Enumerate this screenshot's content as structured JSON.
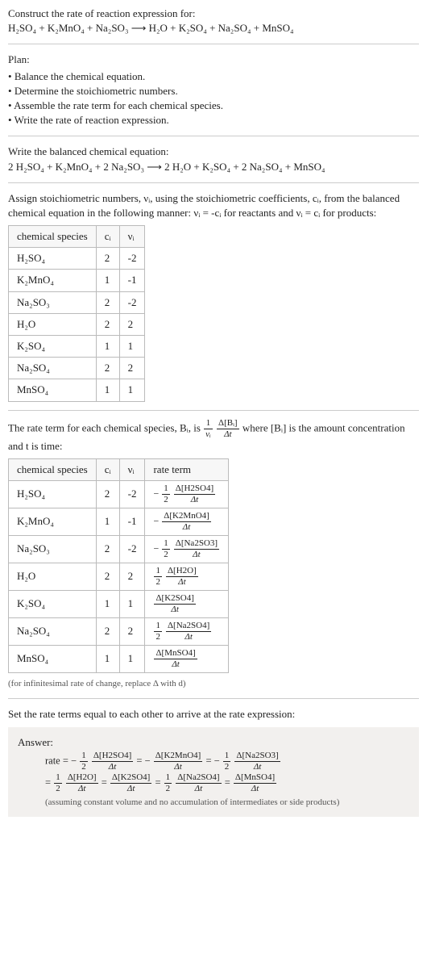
{
  "header": {
    "title": "Construct the rate of reaction expression for:",
    "reaction": "H₂SO₄ + K₂MnO₄ + Na₂SO₃ ⟶ H₂O + K₂SO₄ + Na₂SO₄ + MnSO₄"
  },
  "plan": {
    "title": "Plan:",
    "items": [
      "Balance the chemical equation.",
      "Determine the stoichiometric numbers.",
      "Assemble the rate term for each chemical species.",
      "Write the rate of reaction expression."
    ]
  },
  "balanced": {
    "title": "Write the balanced chemical equation:",
    "equation": "2 H₂SO₄ + K₂MnO₄ + 2 Na₂SO₃ ⟶ 2 H₂O + K₂SO₄ + 2 Na₂SO₄ + MnSO₄"
  },
  "stoich": {
    "intro": "Assign stoichiometric numbers, νᵢ, using the stoichiometric coefficients, cᵢ, from the balanced chemical equation in the following manner: νᵢ = -cᵢ for reactants and νᵢ = cᵢ for products:",
    "headers": [
      "chemical species",
      "cᵢ",
      "νᵢ"
    ],
    "rows": [
      {
        "species": "H₂SO₄",
        "c": "2",
        "v": "-2"
      },
      {
        "species": "K₂MnO₄",
        "c": "1",
        "v": "-1"
      },
      {
        "species": "Na₂SO₃",
        "c": "2",
        "v": "-2"
      },
      {
        "species": "H₂O",
        "c": "2",
        "v": "2"
      },
      {
        "species": "K₂SO₄",
        "c": "1",
        "v": "1"
      },
      {
        "species": "Na₂SO₄",
        "c": "2",
        "v": "2"
      },
      {
        "species": "MnSO₄",
        "c": "1",
        "v": "1"
      }
    ]
  },
  "rateterm": {
    "intro_a": "The rate term for each chemical species, Bᵢ, is ",
    "intro_b": " where [Bᵢ] is the amount concentration and t is time:",
    "headers": [
      "chemical species",
      "cᵢ",
      "νᵢ",
      "rate term"
    ],
    "rows": [
      {
        "species": "H₂SO₄",
        "c": "2",
        "v": "-2",
        "coef_num": "1",
        "coef_den": "2",
        "neg": true,
        "dnum": "Δ[H2SO4]",
        "dden": "Δt"
      },
      {
        "species": "K₂MnO₄",
        "c": "1",
        "v": "-1",
        "coef_num": "",
        "coef_den": "",
        "neg": true,
        "dnum": "Δ[K2MnO4]",
        "dden": "Δt"
      },
      {
        "species": "Na₂SO₃",
        "c": "2",
        "v": "-2",
        "coef_num": "1",
        "coef_den": "2",
        "neg": true,
        "dnum": "Δ[Na2SO3]",
        "dden": "Δt"
      },
      {
        "species": "H₂O",
        "c": "2",
        "v": "2",
        "coef_num": "1",
        "coef_den": "2",
        "neg": false,
        "dnum": "Δ[H2O]",
        "dden": "Δt"
      },
      {
        "species": "K₂SO₄",
        "c": "1",
        "v": "1",
        "coef_num": "",
        "coef_den": "",
        "neg": false,
        "dnum": "Δ[K2SO4]",
        "dden": "Δt"
      },
      {
        "species": "Na₂SO₄",
        "c": "2",
        "v": "2",
        "coef_num": "1",
        "coef_den": "2",
        "neg": false,
        "dnum": "Δ[Na2SO4]",
        "dden": "Δt"
      },
      {
        "species": "MnSO₄",
        "c": "1",
        "v": "1",
        "coef_num": "",
        "coef_den": "",
        "neg": false,
        "dnum": "Δ[MnSO4]",
        "dden": "Δt"
      }
    ],
    "note": "(for infinitesimal rate of change, replace Δ with d)"
  },
  "final": {
    "prompt": "Set the rate terms equal to each other to arrive at the rate expression:",
    "answer_label": "Answer:",
    "note": "(assuming constant volume and no accumulation of intermediates or side products)"
  },
  "coef_frac": {
    "num": "1",
    "den": "νᵢ"
  },
  "delta_frac": {
    "num": "Δ[Bᵢ]",
    "den": "Δt"
  },
  "answer_terms": {
    "rate_label": "rate = ",
    "eq": " = ",
    "line1": [
      {
        "neg": true,
        "cnum": "1",
        "cden": "2",
        "dnum": "Δ[H2SO4]",
        "dden": "Δt"
      },
      {
        "neg": true,
        "cnum": "",
        "cden": "",
        "dnum": "Δ[K2MnO4]",
        "dden": "Δt"
      },
      {
        "neg": true,
        "cnum": "1",
        "cden": "2",
        "dnum": "Δ[Na2SO3]",
        "dden": "Δt"
      }
    ],
    "line2": [
      {
        "neg": false,
        "cnum": "1",
        "cden": "2",
        "dnum": "Δ[H2O]",
        "dden": "Δt"
      },
      {
        "neg": false,
        "cnum": "",
        "cden": "",
        "dnum": "Δ[K2SO4]",
        "dden": "Δt"
      },
      {
        "neg": false,
        "cnum": "1",
        "cden": "2",
        "dnum": "Δ[Na2SO4]",
        "dden": "Δt"
      },
      {
        "neg": false,
        "cnum": "",
        "cden": "",
        "dnum": "Δ[MnSO4]",
        "dden": "Δt"
      }
    ]
  }
}
